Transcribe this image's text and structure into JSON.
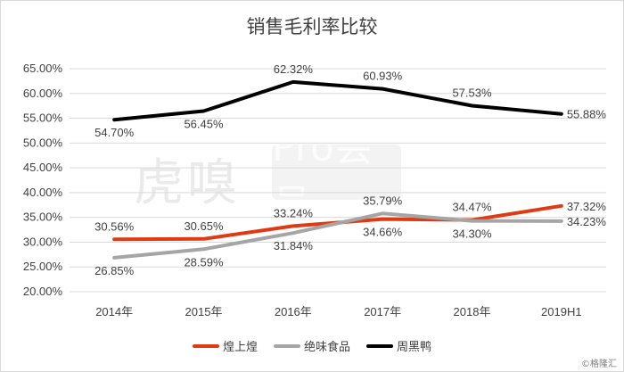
{
  "chart_data": {
    "type": "line",
    "title": "销售毛利率比较",
    "categories": [
      "2014年",
      "2015年",
      "2016年",
      "2017年",
      "2018年",
      "2019H1"
    ],
    "ylim": [
      20,
      65
    ],
    "yticks": [
      "20.00%",
      "25.00%",
      "30.00%",
      "35.00%",
      "40.00%",
      "45.00%",
      "50.00%",
      "55.00%",
      "60.00%",
      "65.00%"
    ],
    "grid": true,
    "legend_position": "bottom",
    "series": [
      {
        "name": "煌上煌",
        "color": "#e03a14",
        "values": [
          30.56,
          30.65,
          33.24,
          34.66,
          34.47,
          37.32
        ],
        "labels": [
          "30.56%",
          "30.65%",
          "33.24%",
          "34.66%",
          "34.47%",
          "37.32%"
        ]
      },
      {
        "name": "绝味食品",
        "color": "#a5a5a5",
        "values": [
          26.85,
          28.59,
          31.84,
          35.79,
          34.3,
          34.23
        ],
        "labels": [
          "26.85%",
          "28.59%",
          "31.84%",
          "35.79%",
          "34.30%",
          "34.23%"
        ]
      },
      {
        "name": "周黑鸭",
        "color": "#000000",
        "values": [
          54.7,
          56.45,
          62.32,
          60.93,
          57.53,
          55.88
        ],
        "labels": [
          "54.70%",
          "56.45%",
          "62.32%",
          "60.93%",
          "57.53%",
          "55.88%"
        ]
      }
    ]
  },
  "watermark": {
    "text": "虎嗅",
    "box_text": "Pro会员"
  },
  "credit": "©格隆汇"
}
